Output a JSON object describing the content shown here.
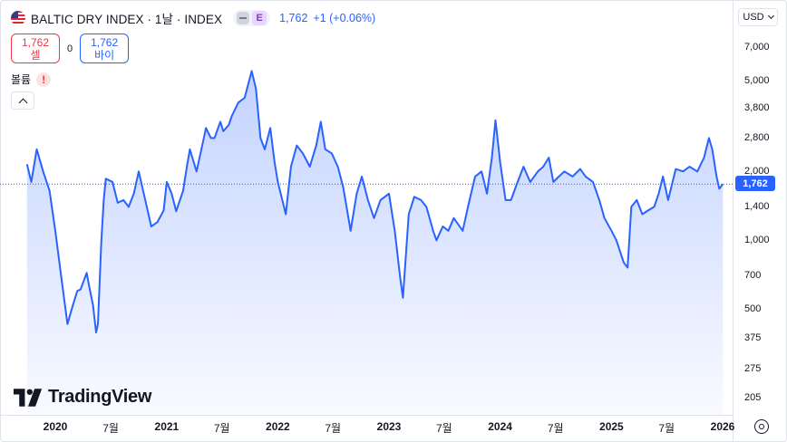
{
  "legend": {
    "symbol_title": "BALTIC DRY INDEX · 1날 · INDEX",
    "exchange_badge": "E",
    "last_value": "1,762",
    "change": "+1 (+0.06%)"
  },
  "trade": {
    "sell_price": "1,762",
    "sell_label": "셀",
    "spread": "0",
    "buy_price": "1,762",
    "buy_label": "바이"
  },
  "volume": {
    "label": "볼륨",
    "warning": "!"
  },
  "currency": "USD",
  "price_tag": "1,762",
  "brand": "TradingView",
  "colors": {
    "line": "#2962ff",
    "fill": "#dbe4ff",
    "price_tag": "#2962ff",
    "sell": "#f23645",
    "buy": "#2962ff"
  },
  "chart_data": {
    "type": "area",
    "title": "BALTIC DRY INDEX",
    "y_scale": "log",
    "y_ticks": [
      "7,000",
      "5,000",
      "3,800",
      "2,800",
      "2,000",
      "1,400",
      "1,000",
      "700",
      "500",
      "375",
      "275",
      "205"
    ],
    "x_ticks": [
      {
        "label": "2020",
        "bold": true,
        "date": "2020-01-01"
      },
      {
        "label": "7월",
        "bold": false,
        "date": "2020-07-01"
      },
      {
        "label": "2021",
        "bold": true,
        "date": "2021-01-01"
      },
      {
        "label": "7월",
        "bold": false,
        "date": "2021-07-01"
      },
      {
        "label": "2022",
        "bold": true,
        "date": "2022-01-01"
      },
      {
        "label": "7월",
        "bold": false,
        "date": "2022-07-01"
      },
      {
        "label": "2023",
        "bold": true,
        "date": "2023-01-01"
      },
      {
        "label": "7월",
        "bold": false,
        "date": "2023-07-01"
      },
      {
        "label": "2024",
        "bold": true,
        "date": "2024-01-01"
      },
      {
        "label": "7월",
        "bold": false,
        "date": "2024-07-01"
      },
      {
        "label": "2025",
        "bold": true,
        "date": "2025-01-01"
      },
      {
        "label": "7월",
        "bold": false,
        "date": "2025-07-01"
      },
      {
        "label": "2026",
        "bold": true,
        "date": "2026-01-01"
      }
    ],
    "last_value": 1762,
    "series": [
      {
        "points": [
          [
            "2019-09-30",
            2150
          ],
          [
            "2019-10-14",
            1800
          ],
          [
            "2019-11-01",
            2500
          ],
          [
            "2019-11-22",
            2000
          ],
          [
            "2019-12-13",
            1650
          ],
          [
            "2020-01-01",
            1100
          ],
          [
            "2020-01-17",
            750
          ],
          [
            "2020-02-10",
            430
          ],
          [
            "2020-02-24",
            500
          ],
          [
            "2020-03-13",
            600
          ],
          [
            "2020-03-24",
            610
          ],
          [
            "2020-04-13",
            720
          ],
          [
            "2020-04-21",
            630
          ],
          [
            "2020-05-04",
            520
          ],
          [
            "2020-05-14",
            395
          ],
          [
            "2020-05-20",
            430
          ],
          [
            "2020-05-31",
            980
          ],
          [
            "2020-06-08",
            1500
          ],
          [
            "2020-06-15",
            1860
          ],
          [
            "2020-07-07",
            1800
          ],
          [
            "2020-07-24",
            1460
          ],
          [
            "2020-08-12",
            1500
          ],
          [
            "2020-08-29",
            1400
          ],
          [
            "2020-09-15",
            1600
          ],
          [
            "2020-10-01",
            2000
          ],
          [
            "2020-10-20",
            1550
          ],
          [
            "2020-11-11",
            1150
          ],
          [
            "2020-12-01",
            1200
          ],
          [
            "2020-12-22",
            1350
          ],
          [
            "2021-01-01",
            1800
          ],
          [
            "2021-01-17",
            1600
          ],
          [
            "2021-02-01",
            1340
          ],
          [
            "2021-02-24",
            1650
          ],
          [
            "2021-03-08",
            2100
          ],
          [
            "2021-03-18",
            2500
          ],
          [
            "2021-04-09",
            2000
          ],
          [
            "2021-05-10",
            3100
          ],
          [
            "2021-05-26",
            2800
          ],
          [
            "2021-06-07",
            2800
          ],
          [
            "2021-06-26",
            3300
          ],
          [
            "2021-07-06",
            3000
          ],
          [
            "2021-07-24",
            3200
          ],
          [
            "2021-08-03",
            3500
          ],
          [
            "2021-08-24",
            4000
          ],
          [
            "2021-09-14",
            4200
          ],
          [
            "2021-10-07",
            5500
          ],
          [
            "2021-10-21",
            4600
          ],
          [
            "2021-11-05",
            2800
          ],
          [
            "2021-11-19",
            2500
          ],
          [
            "2021-12-07",
            3100
          ],
          [
            "2021-12-21",
            2200
          ],
          [
            "2022-01-01",
            1800
          ],
          [
            "2022-01-27",
            1300
          ],
          [
            "2022-02-13",
            2100
          ],
          [
            "2022-03-04",
            2600
          ],
          [
            "2022-03-24",
            2400
          ],
          [
            "2022-04-16",
            2100
          ],
          [
            "2022-05-07",
            2600
          ],
          [
            "2022-05-22",
            3300
          ],
          [
            "2022-06-06",
            2500
          ],
          [
            "2022-06-27",
            2400
          ],
          [
            "2022-07-17",
            2100
          ],
          [
            "2022-08-04",
            1700
          ],
          [
            "2022-08-28",
            1100
          ],
          [
            "2022-09-17",
            1600
          ],
          [
            "2022-10-04",
            1900
          ],
          [
            "2022-10-24",
            1500
          ],
          [
            "2022-11-13",
            1250
          ],
          [
            "2022-12-04",
            1500
          ],
          [
            "2023-01-01",
            1600
          ],
          [
            "2023-01-20",
            1100
          ],
          [
            "2023-02-06",
            700
          ],
          [
            "2023-02-16",
            560
          ],
          [
            "2023-03-07",
            1300
          ],
          [
            "2023-03-25",
            1550
          ],
          [
            "2023-04-16",
            1500
          ],
          [
            "2023-05-04",
            1400
          ],
          [
            "2023-05-26",
            1100
          ],
          [
            "2023-06-06",
            1000
          ],
          [
            "2023-06-27",
            1150
          ],
          [
            "2023-07-15",
            1100
          ],
          [
            "2023-08-02",
            1250
          ],
          [
            "2023-08-31",
            1100
          ],
          [
            "2023-09-20",
            1450
          ],
          [
            "2023-10-11",
            1900
          ],
          [
            "2023-11-01",
            2000
          ],
          [
            "2023-11-19",
            1600
          ],
          [
            "2023-12-05",
            2300
          ],
          [
            "2023-12-17",
            3350
          ],
          [
            "2024-01-01",
            2200
          ],
          [
            "2024-01-19",
            1500
          ],
          [
            "2024-02-06",
            1500
          ],
          [
            "2024-02-24",
            1750
          ],
          [
            "2024-03-18",
            2100
          ],
          [
            "2024-04-09",
            1800
          ],
          [
            "2024-05-04",
            2000
          ],
          [
            "2024-05-22",
            2100
          ],
          [
            "2024-06-09",
            2300
          ],
          [
            "2024-06-24",
            1800
          ],
          [
            "2024-07-12",
            1900
          ],
          [
            "2024-07-30",
            2000
          ],
          [
            "2024-08-26",
            1900
          ],
          [
            "2024-09-20",
            2050
          ],
          [
            "2024-10-08",
            1900
          ],
          [
            "2024-11-01",
            1800
          ],
          [
            "2024-11-22",
            1500
          ],
          [
            "2024-12-09",
            1250
          ],
          [
            "2025-01-01",
            1100
          ],
          [
            "2025-01-17",
            1000
          ],
          [
            "2025-02-10",
            800
          ],
          [
            "2025-02-23",
            760
          ],
          [
            "2025-03-07",
            1400
          ],
          [
            "2025-03-25",
            1500
          ],
          [
            "2025-04-12",
            1300
          ],
          [
            "2025-05-01",
            1350
          ],
          [
            "2025-05-21",
            1400
          ],
          [
            "2025-06-05",
            1600
          ],
          [
            "2025-06-19",
            1900
          ],
          [
            "2025-07-06",
            1500
          ],
          [
            "2025-07-31",
            2050
          ],
          [
            "2025-08-24",
            2000
          ],
          [
            "2025-09-14",
            2100
          ],
          [
            "2025-10-10",
            2000
          ],
          [
            "2025-11-01",
            2300
          ],
          [
            "2025-11-17",
            2800
          ],
          [
            "2025-11-28",
            2500
          ],
          [
            "2025-12-12",
            1900
          ],
          [
            "2025-12-21",
            1680
          ],
          [
            "2026-01-02",
            1762
          ]
        ]
      }
    ]
  }
}
